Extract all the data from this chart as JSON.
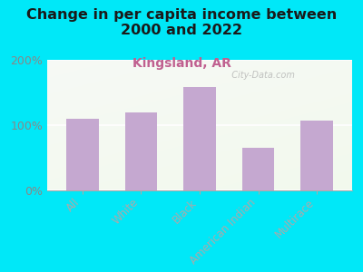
{
  "title": "Change in per capita income between\n2000 and 2022",
  "subtitle": "Kingsland, AR",
  "categories": [
    "All",
    "White",
    "Black",
    "American Indian",
    "Multirace"
  ],
  "values": [
    110,
    120,
    158,
    65,
    107
  ],
  "bar_color": "#c5a8d0",
  "title_fontsize": 11.5,
  "title_color": "#1a1a1a",
  "subtitle_fontsize": 10,
  "subtitle_color": "#c06090",
  "tick_label_color": "#b07090",
  "ytick_label_color": "#888888",
  "background_color": "#00e8f8",
  "watermark": "  City-Data.com",
  "ylim": [
    0,
    200
  ],
  "yticks": [
    0,
    100,
    200
  ],
  "ytick_labels": [
    "0%",
    "100%",
    "200%"
  ]
}
